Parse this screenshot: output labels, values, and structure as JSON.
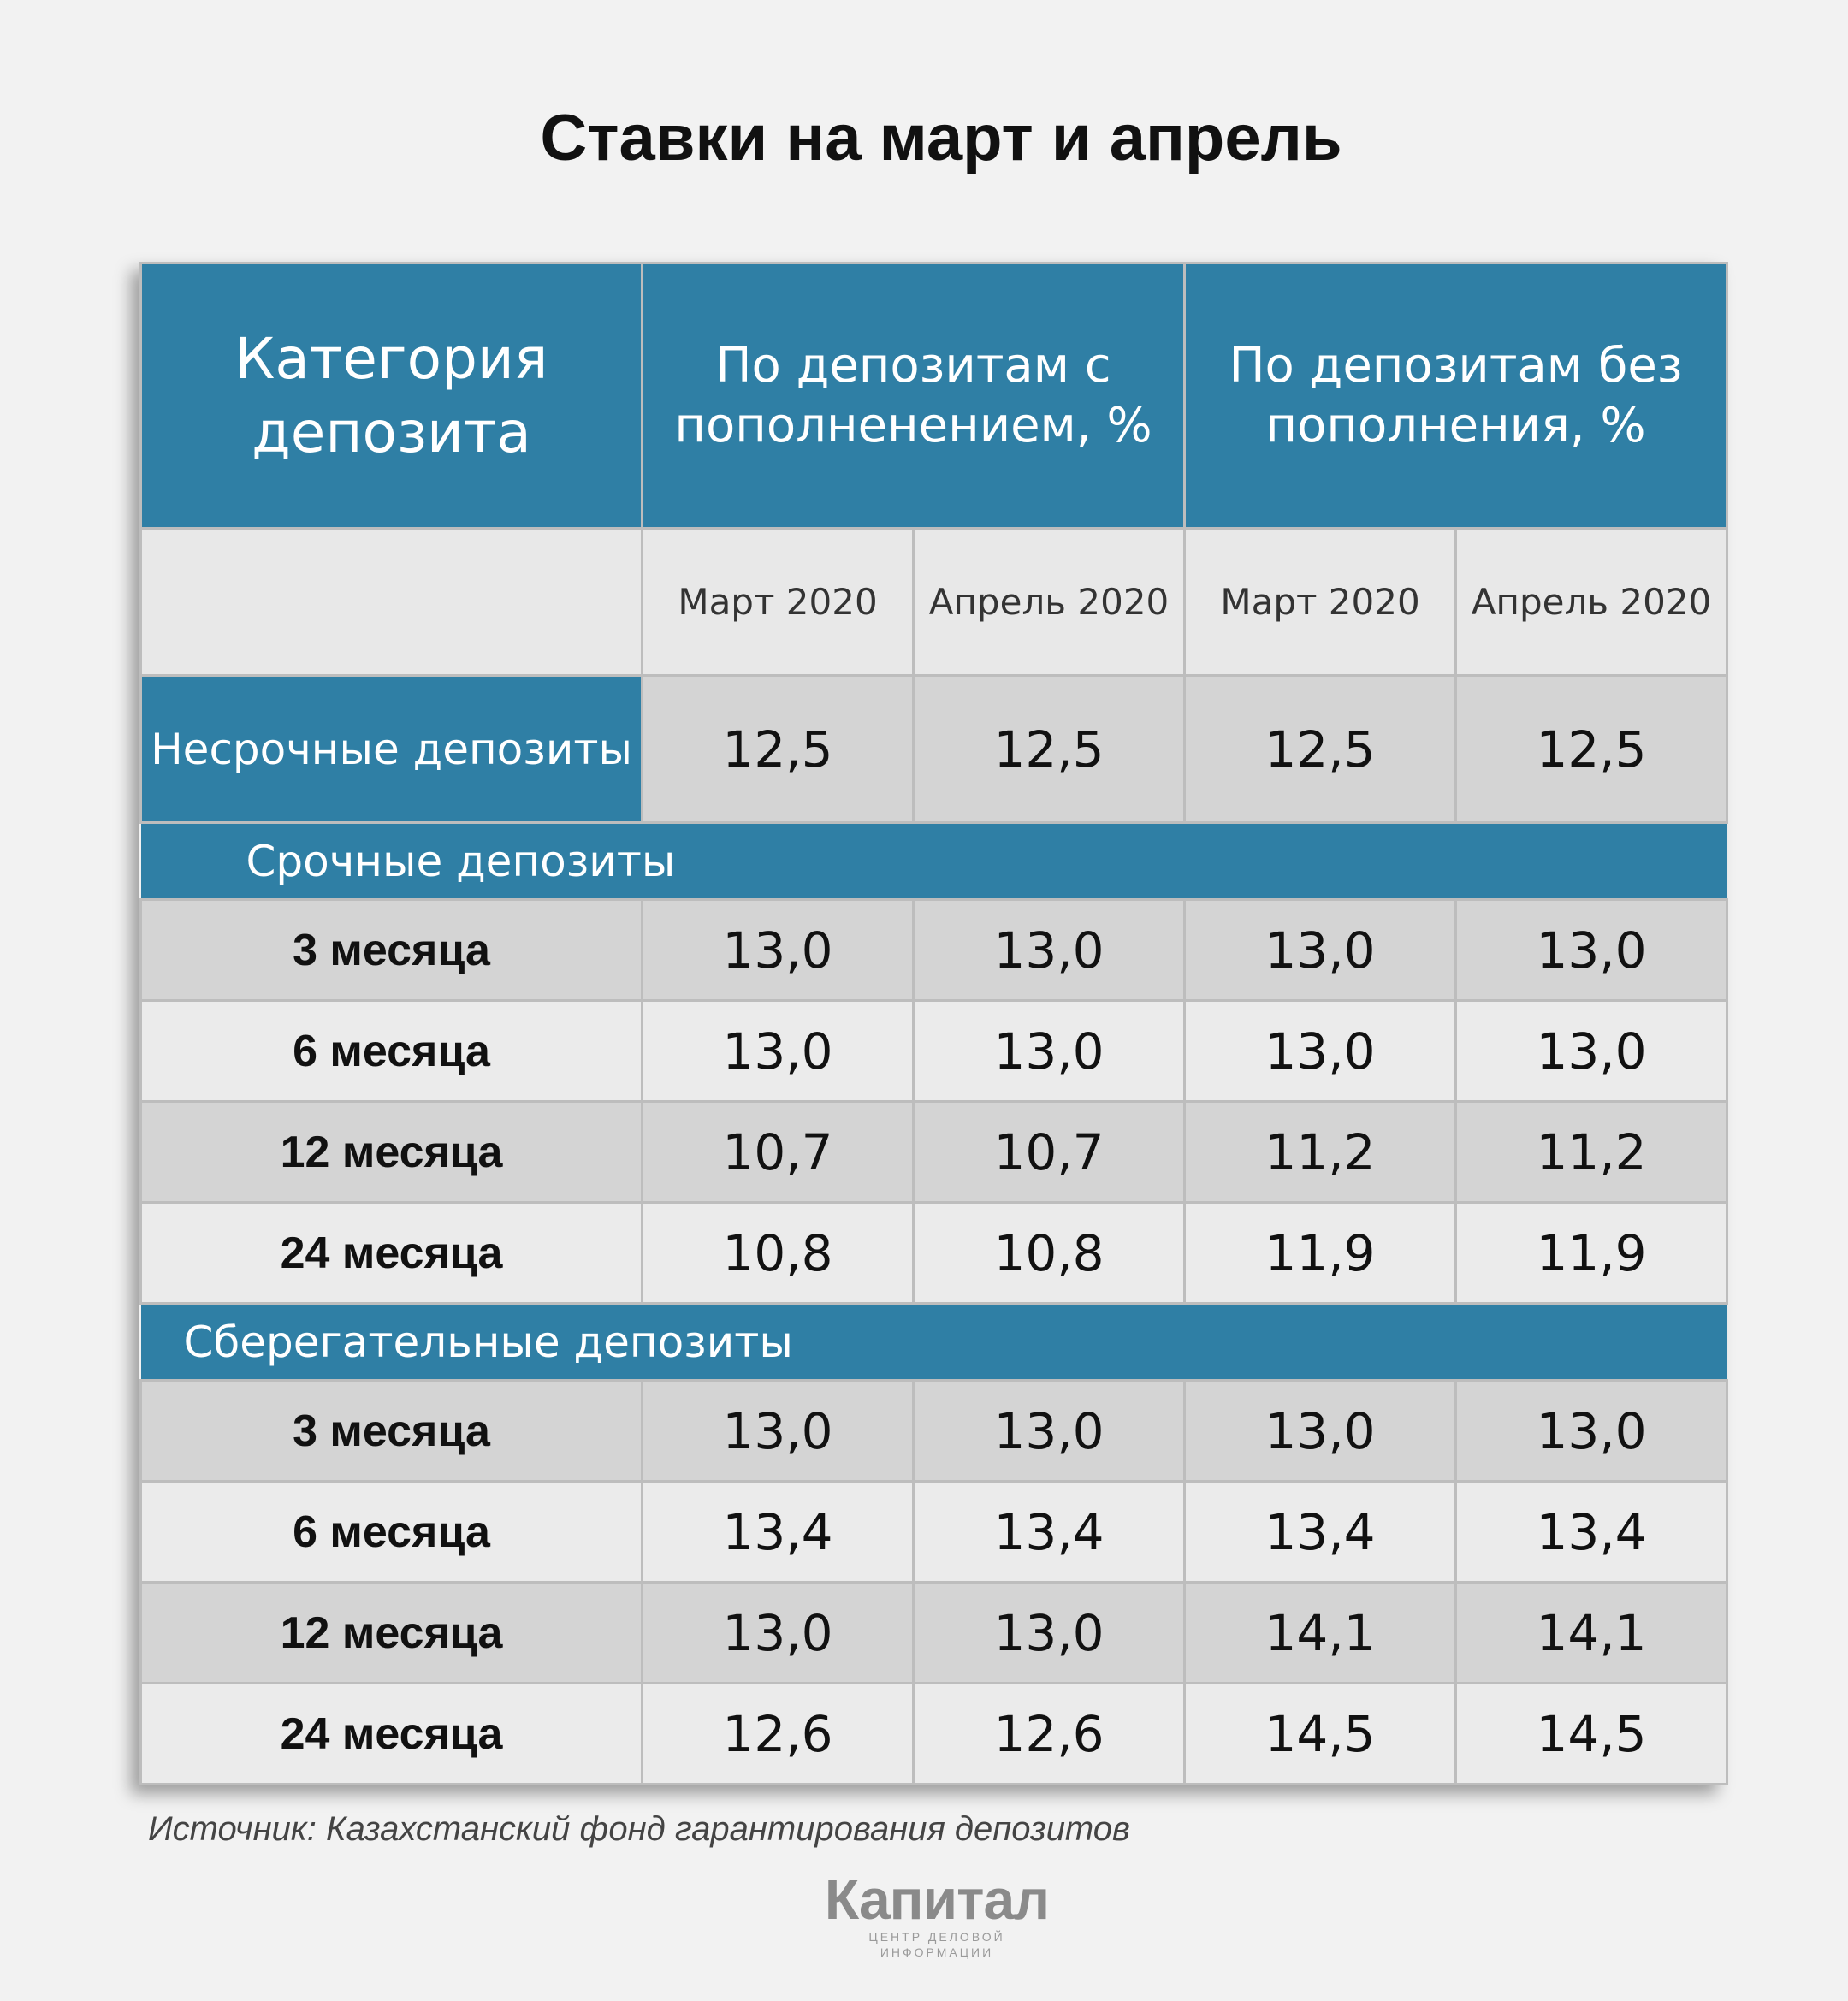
{
  "title": "Ставки на март и апрель",
  "table": {
    "header": {
      "category": "Категория депозита",
      "group1": "По депозитам с пополненением, %",
      "group2": "По депозитам без пополнения, %",
      "subcols": [
        "Март 2020",
        "Апрель 2020",
        "Март 2020",
        "Апрель 2020"
      ]
    },
    "demand": {
      "label": "Несрочные депозиты",
      "values": [
        "12,5",
        "12,5",
        "12,5",
        "12,5"
      ]
    },
    "sections": [
      {
        "title": "Срочные депозиты",
        "rows": [
          {
            "label": "3 месяца",
            "values": [
              "13,0",
              "13,0",
              "13,0",
              "13,0"
            ]
          },
          {
            "label": "6 месяца",
            "values": [
              "13,0",
              "13,0",
              "13,0",
              "13,0"
            ]
          },
          {
            "label": "12 месяца",
            "values": [
              "10,7",
              "10,7",
              "11,2",
              "11,2"
            ]
          },
          {
            "label": "24 месяца",
            "values": [
              "10,8",
              "10,8",
              "11,9",
              "11,9"
            ]
          }
        ]
      },
      {
        "title": "Сберегательные депозиты",
        "rows": [
          {
            "label": "3 месяца",
            "values": [
              "13,0",
              "13,0",
              "13,0",
              "13,0"
            ]
          },
          {
            "label": "6 месяца",
            "values": [
              "13,4",
              "13,4",
              "13,4",
              "13,4"
            ]
          },
          {
            "label": "12 месяца",
            "values": [
              "13,0",
              "13,0",
              "14,1",
              "14,1"
            ]
          },
          {
            "label": "24 месяца",
            "values": [
              "12,6",
              "12,6",
              "14,5",
              "14,5"
            ]
          }
        ]
      }
    ]
  },
  "source": "Источник: Казахстанский фонд гарантирования депозитов",
  "logo": {
    "name": "Капитал",
    "tagline": "ЦЕНТР ДЕЛОВОЙ ИНФОРМАЦИИ"
  },
  "colors": {
    "header_blue": "#2f7fa5",
    "row_dark": "#d4d4d4",
    "row_light": "#ebebeb",
    "background": "#f2f2f2"
  }
}
